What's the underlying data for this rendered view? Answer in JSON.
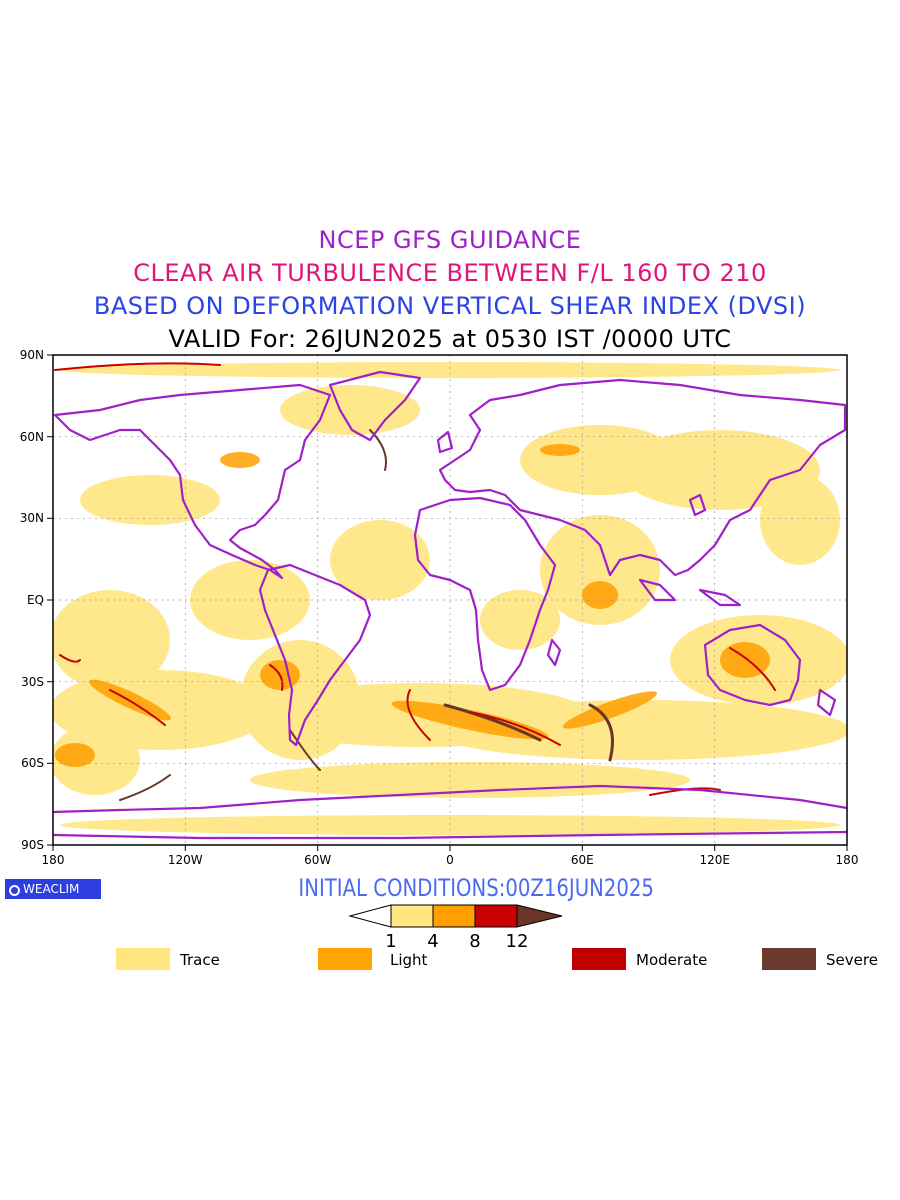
{
  "title": {
    "line1": "NCEP GFS GUIDANCE",
    "line2": "CLEAR AIR TURBULENCE BETWEEN F/L 160 TO 210",
    "line3": "BASED ON DEFORMATION VERTICAL SHEAR INDEX (DVSI)",
    "line4": "VALID For: 26JUN2025 at 0530 IST /0000 UTC"
  },
  "axes": {
    "lat_labels": [
      "90N",
      "60N",
      "30N",
      "EQ",
      "30S",
      "60S",
      "90S"
    ],
    "lon_labels": [
      "180",
      "120W",
      "60W",
      "0",
      "60E",
      "120E",
      "180"
    ]
  },
  "initial_conditions": "INITIAL CONDITIONS:00Z16JUN2025",
  "logo": "WEACLIM",
  "colorbar": {
    "ticks": [
      "1",
      "4",
      "8",
      "12"
    ],
    "colors": [
      "#ffe680",
      "#ff9f00",
      "#c80000",
      "#6a3628"
    ]
  },
  "legend": [
    {
      "label": "Trace",
      "color": "#ffe680"
    },
    {
      "label": "Light",
      "color": "#ffa500"
    },
    {
      "label": "Moderate",
      "color": "#c00000"
    },
    {
      "label": "Severe",
      "color": "#6b3a2e"
    }
  ],
  "colors": {
    "coastline": "#a020c8",
    "trace": "#ffe680",
    "light": "#ff9f00",
    "moderate": "#c80000",
    "severe": "#6a3628"
  }
}
